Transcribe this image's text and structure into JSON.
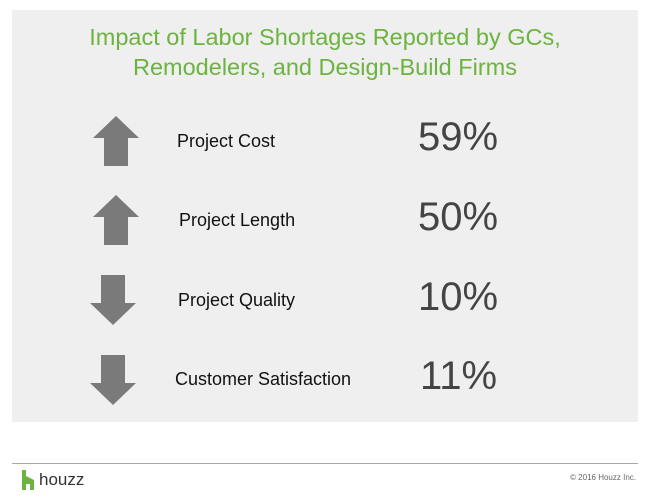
{
  "title": {
    "line1": "Impact of Labor Shortages Reported by GCs,",
    "line2": "Remodelers, and Design-Build Firms"
  },
  "colors": {
    "title": "#6cb33f",
    "arrow": "#7a7a7a",
    "panel": "#efefef",
    "logo": "#6cb33f"
  },
  "items": [
    {
      "label": "Project Cost",
      "value": "59%",
      "direction": "up",
      "icon": "arrow-up-icon"
    },
    {
      "label": "Project Length",
      "value": "50%",
      "direction": "up",
      "icon": "arrow-up-icon"
    },
    {
      "label": "Project Quality",
      "value": "10%",
      "direction": "down",
      "icon": "arrow-down-icon"
    },
    {
      "label": "Customer Satisfaction",
      "value": "11%",
      "direction": "down",
      "icon": "arrow-down-icon"
    }
  ],
  "footer": {
    "logo_text": "houzz",
    "logo_icon": "houzz-logo-icon",
    "copyright": "© 2016 Houzz Inc."
  }
}
